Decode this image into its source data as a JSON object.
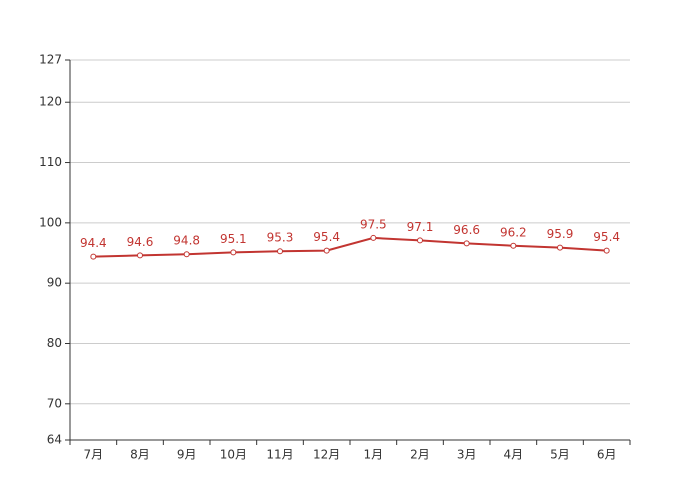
{
  "chart_data": {
    "type": "line",
    "categories": [
      "7月",
      "8月",
      "9月",
      "10月",
      "11月",
      "12月",
      "1月",
      "2月",
      "3月",
      "4月",
      "5月",
      "6月"
    ],
    "values": [
      94.4,
      94.6,
      94.8,
      95.1,
      95.3,
      95.4,
      97.5,
      97.1,
      96.6,
      96.2,
      95.9,
      95.4
    ],
    "color": "#c23531",
    "ylim": [
      64,
      127
    ],
    "yticks": [
      64,
      70,
      80,
      90,
      100,
      110,
      120,
      127
    ],
    "grid": true
  }
}
